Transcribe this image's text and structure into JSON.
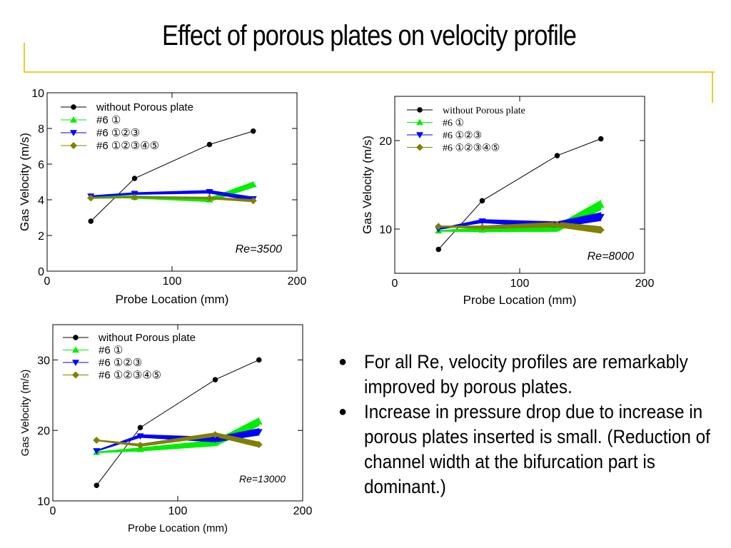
{
  "slide": {
    "title": "Effect of porous plates on velocity profile",
    "bullets": [
      "For all Re, velocity profiles are remarkably improved by porous plates.",
      "Increase in pressure drop due to increase in porous plates inserted is small. (Reduction of channel width at the bifurcation part is dominant.)"
    ],
    "colors": {
      "accent_rule": "#e8cf2e"
    }
  },
  "chart_data": [
    {
      "type": "line",
      "xlabel": "Probe Location (mm)",
      "ylabel": "Gas Velocity (m/s)",
      "annotation": "Re=3500",
      "xlim": [
        0,
        200
      ],
      "ylim": [
        0,
        10
      ],
      "xticks": [
        0,
        100,
        200
      ],
      "yticks": [
        0,
        2,
        4,
        6,
        8,
        10
      ],
      "grid": false,
      "legend_position": "top-left",
      "series": [
        {
          "name": "without Porous plate",
          "marker": "circle",
          "color": "#000000",
          "x": [
            35,
            70,
            130,
            165
          ],
          "y": [
            2.8,
            5.2,
            7.1,
            7.85
          ]
        },
        {
          "name": "#6 ①",
          "marker": "triangle-up",
          "color": "#00ee00",
          "x": [
            35,
            70,
            130,
            165
          ],
          "y": [
            4.2,
            4.15,
            4.0,
            4.85
          ]
        },
        {
          "name": "#6 ①②③",
          "marker": "triangle-down",
          "color": "#0000ff",
          "x": [
            35,
            70,
            130,
            165
          ],
          "y": [
            4.2,
            4.35,
            4.45,
            4.05
          ]
        },
        {
          "name": "#6 ①②③④⑤",
          "marker": "diamond",
          "color": "#808000",
          "x": [
            35,
            70,
            130,
            165
          ],
          "y": [
            4.1,
            4.15,
            4.1,
            3.95
          ]
        }
      ]
    },
    {
      "type": "line",
      "xlabel": "Probe Location (mm)",
      "ylabel": "Gas Velocity (m/s)",
      "annotation": "Re=8000",
      "xlim": [
        0,
        200
      ],
      "ylim": [
        5,
        25
      ],
      "xticks": [
        0,
        100,
        200
      ],
      "yticks": [
        10,
        20
      ],
      "grid": false,
      "legend_position": "top-left",
      "series": [
        {
          "name": "without Porous plate",
          "marker": "circle",
          "color": "#000000",
          "x": [
            35,
            70,
            130,
            165
          ],
          "y": [
            7.7,
            13.2,
            18.3,
            20.2
          ]
        },
        {
          "name": "#6 ①",
          "marker": "triangle-up",
          "color": "#00ee00",
          "x": [
            35,
            70,
            130,
            165
          ],
          "y": [
            9.8,
            9.9,
            10.1,
            12.7
          ]
        },
        {
          "name": "#6 ①②③",
          "marker": "triangle-down",
          "color": "#0000ff",
          "x": [
            35,
            70,
            130,
            165
          ],
          "y": [
            10.0,
            10.9,
            10.5,
            11.4
          ]
        },
        {
          "name": "#6 ①②③④⑤",
          "marker": "diamond",
          "color": "#808000",
          "x": [
            35,
            70,
            130,
            165
          ],
          "y": [
            10.3,
            10.2,
            10.5,
            9.9
          ]
        }
      ]
    },
    {
      "type": "line",
      "xlabel": "Probe Location (mm)",
      "ylabel": "Gas Velocity (m/s)",
      "annotation": "Re=13000",
      "xlim": [
        0,
        200
      ],
      "ylim": [
        10,
        35
      ],
      "xticks": [
        0,
        100,
        200
      ],
      "yticks": [
        10,
        20,
        30
      ],
      "grid": false,
      "legend_position": "top-left",
      "series": [
        {
          "name": "without Porous plate",
          "marker": "circle",
          "color": "#000000",
          "x": [
            35,
            70,
            130,
            165
          ],
          "y": [
            12.2,
            20.4,
            27.2,
            30.0
          ]
        },
        {
          "name": "#6 ①",
          "marker": "triangle-up",
          "color": "#00ee00",
          "x": [
            35,
            70,
            130,
            165
          ],
          "y": [
            16.9,
            17.3,
            18.2,
            21.2
          ]
        },
        {
          "name": "#6 ①②③",
          "marker": "triangle-down",
          "color": "#0000ff",
          "x": [
            35,
            70,
            130,
            165
          ],
          "y": [
            17.1,
            19.2,
            18.7,
            19.8
          ]
        },
        {
          "name": "#6 ①②③④⑤",
          "marker": "diamond",
          "color": "#808000",
          "x": [
            35,
            70,
            130,
            165
          ],
          "y": [
            18.6,
            17.9,
            19.4,
            18.0
          ]
        }
      ]
    }
  ]
}
